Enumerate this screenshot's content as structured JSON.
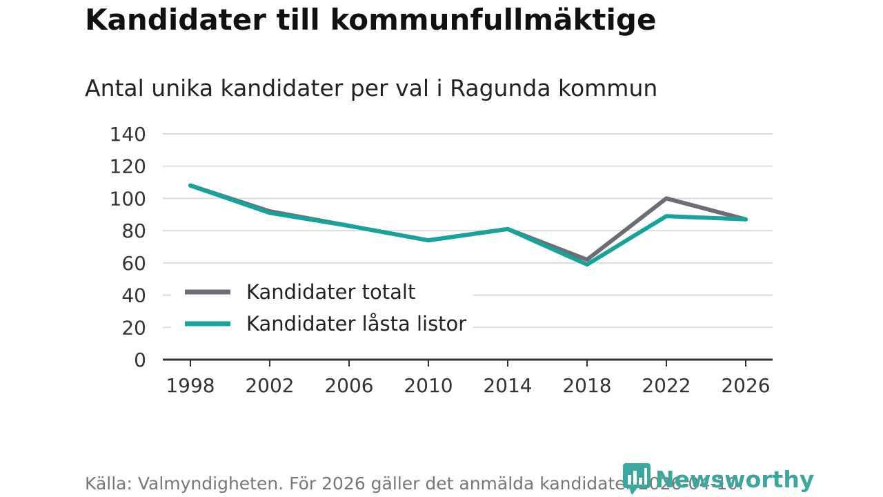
{
  "title": "Kandidater till kommunfullmäktige",
  "subtitle": "Antal unika kandidater per val i Ragunda kommun",
  "source": "Källa: Valmyndigheten. För 2026 gäller det anmälda kandidater 2026-04-10.",
  "brand": "Newsworthy",
  "colors": {
    "total": "#6e6d75",
    "locked": "#16a39b",
    "grid": "#dddddd",
    "axis": "#333333",
    "brand": "#3aa89e"
  },
  "chart_data": {
    "type": "line",
    "title": "Kandidater till kommunfullmäktige",
    "subtitle": "Antal unika kandidater per val i Ragunda kommun",
    "xlabel": "",
    "ylabel": "",
    "categories": [
      "1998",
      "2002",
      "2006",
      "2010",
      "2014",
      "2018",
      "2022",
      "2026"
    ],
    "ylim": [
      0,
      140
    ],
    "yticks": [
      0,
      20,
      40,
      60,
      80,
      100,
      120,
      140
    ],
    "grid": true,
    "legend_position": "bottom-left",
    "series": [
      {
        "name": "Kandidater totalt",
        "color": "#6e6d75",
        "values": [
          108,
          92,
          83,
          74,
          81,
          62,
          100,
          87
        ]
      },
      {
        "name": "Kandidater låsta listor",
        "color": "#16a39b",
        "values": [
          108,
          91,
          83,
          74,
          81,
          59,
          89,
          87
        ]
      }
    ]
  }
}
